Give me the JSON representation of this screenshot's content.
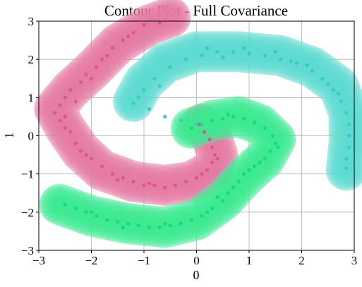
{
  "chart_data": {
    "type": "scatter",
    "title": "Contour Plot - Full Covariance",
    "xlabel": "0",
    "ylabel": "1",
    "xlim": [
      -3,
      3
    ],
    "ylim": [
      -3,
      3
    ],
    "xticks": [
      -3,
      -2,
      -1,
      0,
      1,
      2,
      3
    ],
    "yticks": [
      -3,
      -2,
      -1,
      0,
      1,
      2,
      3
    ],
    "xtick_labels": [
      "−3",
      "−2",
      "−1",
      "0",
      "1",
      "2",
      "3"
    ],
    "ytick_labels": [
      "−3",
      "−2",
      "−1",
      "0",
      "1",
      "2",
      "3"
    ],
    "grid": true,
    "series": [
      {
        "color": "#e8709a",
        "marker_color": "#d9588a",
        "band_color": "#e58aab",
        "spine": [
          [
            -0.5,
            3.1
          ],
          [
            -0.9,
            2.9
          ],
          [
            -1.5,
            2.4
          ],
          [
            -2.0,
            1.7
          ],
          [
            -2.4,
            1.2
          ],
          [
            -2.7,
            0.7
          ],
          [
            -2.5,
            0.2
          ],
          [
            -2.2,
            -0.4
          ],
          [
            -1.8,
            -0.9
          ],
          [
            -1.2,
            -1.2
          ],
          [
            -0.6,
            -1.3
          ],
          [
            -0.1,
            -1.2
          ],
          [
            0.3,
            -0.9
          ],
          [
            0.4,
            -0.5
          ],
          [
            0.3,
            -0.1
          ],
          [
            0.1,
            0.3
          ]
        ],
        "points": [
          [
            -1.0,
            2.9
          ],
          [
            -0.7,
            2.95
          ],
          [
            -1.2,
            2.7
          ],
          [
            -1.4,
            2.5
          ],
          [
            -1.6,
            2.3
          ],
          [
            -1.8,
            2.0
          ],
          [
            -1.9,
            1.8
          ],
          [
            -2.1,
            1.6
          ],
          [
            -2.2,
            1.4
          ],
          [
            -2.4,
            1.2
          ],
          [
            -2.5,
            1.0
          ],
          [
            -2.6,
            0.8
          ],
          [
            -2.7,
            0.6
          ],
          [
            -2.6,
            0.4
          ],
          [
            -2.5,
            0.2
          ],
          [
            -2.4,
            0.1
          ],
          [
            -2.3,
            -0.2
          ],
          [
            -2.2,
            -0.4
          ],
          [
            -2.0,
            -0.6
          ],
          [
            -1.8,
            -0.8
          ],
          [
            -1.6,
            -1.0
          ],
          [
            -1.4,
            -1.1
          ],
          [
            -1.2,
            -1.2
          ],
          [
            -1.0,
            -1.3
          ],
          [
            -0.8,
            -1.3
          ],
          [
            -0.6,
            -1.35
          ],
          [
            -0.4,
            -1.3
          ],
          [
            -0.2,
            -1.2
          ],
          [
            0.0,
            -1.1
          ],
          [
            0.2,
            -0.9
          ],
          [
            0.3,
            -0.7
          ],
          [
            0.35,
            -0.5
          ],
          [
            0.3,
            -0.3
          ],
          [
            0.25,
            -0.1
          ],
          [
            0.15,
            0.1
          ],
          [
            0.05,
            0.3
          ],
          [
            -1.3,
            2.6
          ],
          [
            -2.0,
            1.5
          ],
          [
            -2.3,
            0.9
          ],
          [
            -2.1,
            -0.5
          ],
          [
            -1.5,
            -1.15
          ],
          [
            -0.9,
            -1.25
          ],
          [
            0.1,
            -1.0
          ],
          [
            0.4,
            -0.6
          ],
          [
            -1.7,
            2.1
          ],
          [
            -2.5,
            0.5
          ]
        ]
      },
      {
        "color": "#4dd6cc",
        "marker_color": "#3cc9c0",
        "band_color": "#6fded7",
        "spine": [
          [
            -1.2,
            0.9
          ],
          [
            -1.0,
            1.4
          ],
          [
            -0.6,
            1.9
          ],
          [
            0.0,
            2.2
          ],
          [
            0.8,
            2.2
          ],
          [
            1.6,
            2.1
          ],
          [
            2.2,
            1.8
          ],
          [
            2.7,
            1.3
          ],
          [
            2.9,
            0.6
          ],
          [
            2.9,
            -0.2
          ],
          [
            2.85,
            -0.9
          ]
        ],
        "points": [
          [
            -1.2,
            0.85
          ],
          [
            -1.0,
            1.2
          ],
          [
            -0.8,
            1.5
          ],
          [
            -0.5,
            1.8
          ],
          [
            -0.2,
            2.0
          ],
          [
            0.1,
            2.1
          ],
          [
            0.4,
            2.2
          ],
          [
            0.7,
            2.2
          ],
          [
            1.0,
            2.15
          ],
          [
            1.3,
            2.1
          ],
          [
            1.6,
            2.0
          ],
          [
            1.9,
            1.9
          ],
          [
            2.2,
            1.7
          ],
          [
            2.4,
            1.5
          ],
          [
            2.6,
            1.2
          ],
          [
            2.75,
            0.9
          ],
          [
            2.85,
            0.6
          ],
          [
            2.9,
            0.3
          ],
          [
            2.9,
            0.0
          ],
          [
            2.9,
            -0.3
          ],
          [
            2.85,
            -0.6
          ],
          [
            2.85,
            -0.85
          ],
          [
            0.2,
            2.3
          ],
          [
            0.9,
            2.3
          ],
          [
            1.5,
            2.2
          ],
          [
            2.1,
            1.85
          ],
          [
            2.7,
            1.1
          ],
          [
            -0.7,
            1.3
          ],
          [
            -0.9,
            0.7
          ],
          [
            -0.6,
            0.5
          ],
          [
            -0.3,
            0.4
          ],
          [
            0.0,
            0.3
          ],
          [
            -1.1,
            1.0
          ],
          [
            2.5,
            1.35
          ],
          [
            1.8,
            1.95
          ],
          [
            0.5,
            2.05
          ]
        ]
      },
      {
        "color": "#2fe38a",
        "marker_color": "#1ad97b",
        "band_color": "#4df09a",
        "spine": [
          [
            -2.6,
            -1.8
          ],
          [
            -2.0,
            -2.1
          ],
          [
            -1.3,
            -2.3
          ],
          [
            -0.6,
            -2.4
          ],
          [
            0.0,
            -2.2
          ],
          [
            0.5,
            -1.7
          ],
          [
            0.9,
            -1.1
          ],
          [
            1.3,
            -0.6
          ],
          [
            1.5,
            -0.1
          ],
          [
            1.2,
            0.3
          ],
          [
            0.8,
            0.5
          ],
          [
            0.3,
            0.4
          ],
          [
            -0.1,
            0.2
          ]
        ],
        "points": [
          [
            -2.5,
            -1.8
          ],
          [
            -2.3,
            -1.9
          ],
          [
            -2.1,
            -2.0
          ],
          [
            -1.9,
            -2.1
          ],
          [
            -1.7,
            -2.2
          ],
          [
            -1.5,
            -2.25
          ],
          [
            -1.3,
            -2.3
          ],
          [
            -1.1,
            -2.35
          ],
          [
            -0.9,
            -2.4
          ],
          [
            -0.7,
            -2.4
          ],
          [
            -0.5,
            -2.35
          ],
          [
            -0.3,
            -2.3
          ],
          [
            -0.1,
            -2.2
          ],
          [
            0.1,
            -2.1
          ],
          [
            0.3,
            -1.9
          ],
          [
            0.5,
            -1.7
          ],
          [
            0.6,
            -1.5
          ],
          [
            0.8,
            -1.2
          ],
          [
            0.9,
            -1.0
          ],
          [
            1.1,
            -0.8
          ],
          [
            1.3,
            -0.6
          ],
          [
            1.4,
            -0.4
          ],
          [
            1.5,
            -0.2
          ],
          [
            1.45,
            0.0
          ],
          [
            1.3,
            0.2
          ],
          [
            1.1,
            0.35
          ],
          [
            0.9,
            0.45
          ],
          [
            0.7,
            0.5
          ],
          [
            0.5,
            0.45
          ],
          [
            0.3,
            0.4
          ],
          [
            0.1,
            0.3
          ],
          [
            -0.1,
            0.2
          ],
          [
            -0.6,
            -2.3
          ],
          [
            0.2,
            -2.0
          ],
          [
            0.7,
            -1.35
          ],
          [
            1.2,
            -0.7
          ],
          [
            1.55,
            -0.3
          ],
          [
            0.6,
            0.55
          ],
          [
            -1.4,
            -2.4
          ],
          [
            -2.0,
            -2.0
          ],
          [
            0.4,
            -1.6
          ],
          [
            1.0,
            -0.9
          ]
        ]
      }
    ]
  }
}
